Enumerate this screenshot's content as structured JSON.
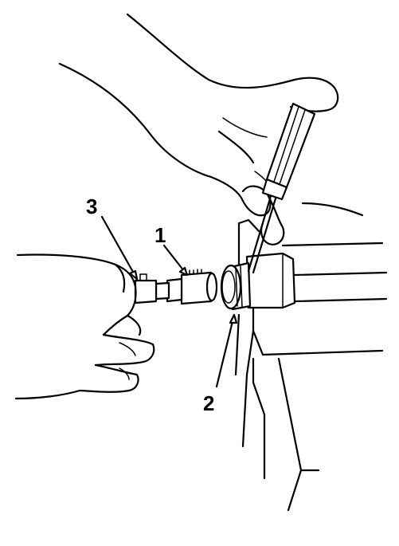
{
  "callouts": [
    {
      "id": "1",
      "label": "1"
    },
    {
      "id": "2",
      "label": "2"
    },
    {
      "id": "3",
      "label": "3"
    }
  ],
  "colors": {
    "line": "#000000",
    "background": "#ffffff"
  }
}
